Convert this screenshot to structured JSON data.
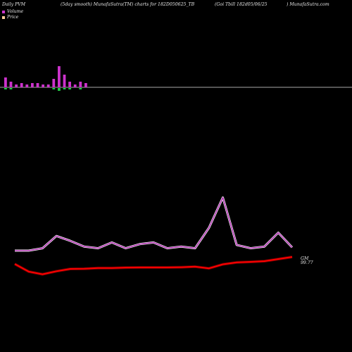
{
  "header": {
    "left": "Daily PVM",
    "middle": "(5day smooth) MunafaSutra(TM) charts for 182D050625_TB",
    "gsec": "(Goi  Tbill 182d05/06/25",
    "right": ") MunafaSutra.com"
  },
  "legend": {
    "volume_label": "Volume",
    "price_label": "Price"
  },
  "colors": {
    "background": "#000000",
    "volume_up": "#cc33cc",
    "volume_down": "#22cc44",
    "volume_axis": "#aaaaaa",
    "pvm_line_stroke": "#ffffff",
    "pvm_line": "#b030b0",
    "price_line": "#ff0000",
    "price_line_shadow": "#660000",
    "price_swatch": "#ffcc99"
  },
  "end_label": {
    "name": "GM",
    "value": "99.77"
  },
  "chart_data": [
    {
      "type": "bar",
      "title": "Volume",
      "values_up": [
        7,
        4,
        2,
        3,
        2,
        3,
        3,
        2,
        2,
        6,
        15,
        9,
        4,
        2,
        4,
        3
      ],
      "values_down": [
        1,
        1,
        0,
        0,
        0,
        0,
        0,
        0,
        0,
        1,
        2,
        1,
        1,
        0,
        1,
        0
      ]
    },
    {
      "type": "line",
      "series": [
        {
          "values": [
            31,
            34,
            49,
            43,
            36,
            34,
            41,
            34,
            39,
            41,
            34,
            36,
            34,
            59,
            96,
            38,
            34,
            36,
            53,
            35
          ]
        },
        {
          "values": [
            99.4,
            99.0,
            98.86,
            99.02,
            99.14,
            99.15,
            99.19,
            99.19,
            99.21,
            99.22,
            99.22,
            99.22,
            99.23,
            99.26,
            99.17,
            99.38,
            99.48,
            99.51,
            99.55,
            99.66,
            99.77
          ]
        }
      ]
    }
  ]
}
